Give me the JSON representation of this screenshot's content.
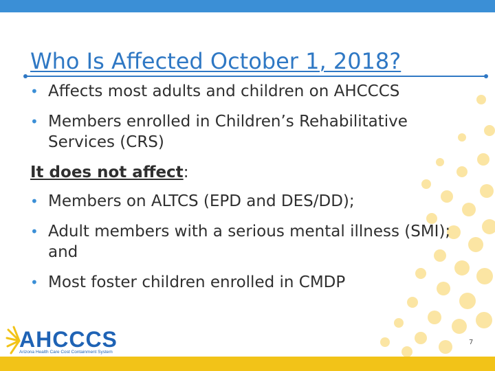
{
  "slide": {
    "title": "Who Is Affected October 1, 2018?",
    "bullets_top": [
      "Affects most adults and children on AHCCCS",
      "Members enrolled in Children’s Rehabilitative Services (CRS)"
    ],
    "subhead_underlined": "It does not affect",
    "subhead_suffix": ":",
    "bullets_bottom": [
      "Members on ALTCS (EPD and DES/DD);",
      "Adult members with a serious mental illness (SMI); and",
      "Most foster children enrolled in CMDP"
    ],
    "page_number": "7"
  },
  "logo": {
    "name": "AHCCCS",
    "tagline": "Arizona Health Care Cost Containment System"
  },
  "colors": {
    "top_bar": "#3b8fd6",
    "bottom_bar": "#f2c318",
    "title": "#2f78c4",
    "dots": "#fbe5a3"
  },
  "icons": {
    "bullet": "bullet-dot-icon",
    "logo_mark": "sunburst-logo-icon"
  }
}
